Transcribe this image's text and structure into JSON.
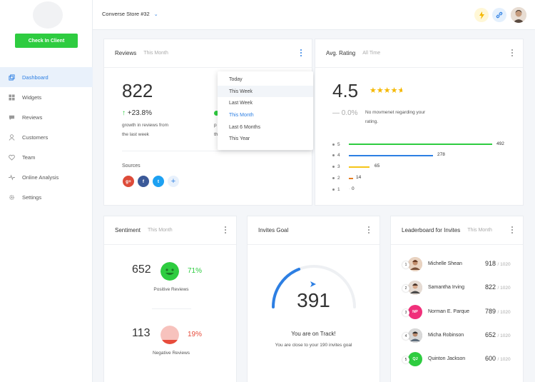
{
  "sidebar": {
    "checkin_label": "Check In Client",
    "items": [
      {
        "label": "Dashboard",
        "icon": "dashboard-icon",
        "active": true
      },
      {
        "label": "Widgets",
        "icon": "widgets-icon"
      },
      {
        "label": "Reviews",
        "icon": "reviews-icon"
      },
      {
        "label": "Customers",
        "icon": "customers-icon"
      },
      {
        "label": "Team",
        "icon": "team-icon"
      },
      {
        "label": "Online Analysis",
        "icon": "analysis-icon"
      },
      {
        "label": "Settings",
        "icon": "settings-icon"
      }
    ]
  },
  "topbar": {
    "store": "Converse Store #32"
  },
  "reviews": {
    "title": "Reviews",
    "period": "This Month",
    "count": "822",
    "delta": "+23.8%",
    "delta_caption_1": "growth in reviews from",
    "delta_caption_2": "the last week",
    "hidden_caption_1": "p",
    "hidden_caption_2": "th",
    "sources_label": "Sources",
    "sources": [
      {
        "name": "google-plus",
        "glyph": "g+",
        "color": "#dd4b39"
      },
      {
        "name": "facebook",
        "glyph": "f",
        "color": "#3b5998"
      },
      {
        "name": "twitter",
        "glyph": "t",
        "color": "#1da1f2"
      }
    ]
  },
  "dropdown": {
    "options": [
      "Today",
      "This Week",
      "Last Week",
      "This Month",
      "Last 6 Months",
      "This Year"
    ],
    "hovered": "This Week",
    "selected": "This Month"
  },
  "rating": {
    "title": "Avg. Rating",
    "period": "All Time",
    "value": "4.5",
    "stars": 4.5,
    "delta": "0.0%",
    "note_1": "No movmenet regarding your",
    "note_2": "rating.",
    "breakdown": [
      {
        "stars": "5",
        "count": "492",
        "color": "#2ecc40"
      },
      {
        "stars": "4",
        "count": "278",
        "color": "#2d7fe3"
      },
      {
        "stars": "3",
        "count": "65",
        "color": "#f5c518"
      },
      {
        "stars": "2",
        "count": "14",
        "color": "#e67e22"
      },
      {
        "stars": "1",
        "count": "0",
        "color": "#cccccc"
      }
    ]
  },
  "sentiment": {
    "title": "Sentiment",
    "period": "This Month",
    "positive_count": "652",
    "positive_pct": "71%",
    "positive_label": "Positive Reviews",
    "negative_count": "113",
    "negative_pct": "19%",
    "negative_label": "Negative Reviews"
  },
  "invites": {
    "title": "Invites Goal",
    "value": "391",
    "progress": 0.38,
    "status": "You are on Track!",
    "message": "You are close to your 190 invites goal"
  },
  "leaderboard": {
    "title": "Leaderboard for Invites",
    "period": "This Month",
    "rows": [
      {
        "rank": "1",
        "name": "Michelle Shean",
        "score": "918",
        "total": "/ 1020",
        "initials": "",
        "color": "#c9a28a"
      },
      {
        "rank": "2",
        "name": "Samantha Irving",
        "score": "822",
        "total": "/ 1020",
        "initials": "",
        "color": "#b59a8a"
      },
      {
        "rank": "3",
        "name": "Norman E. Parque",
        "score": "789",
        "total": "/ 1020",
        "initials": "NP",
        "color": "#f0307a"
      },
      {
        "rank": "4",
        "name": "Micha Robinson",
        "score": "652",
        "total": "/ 1020",
        "initials": "",
        "color": "#8e8e8e"
      },
      {
        "rank": "5",
        "name": "Quinton Jackson",
        "score": "600",
        "total": "/ 1020",
        "initials": "QJ",
        "color": "#2ecc40"
      }
    ]
  }
}
